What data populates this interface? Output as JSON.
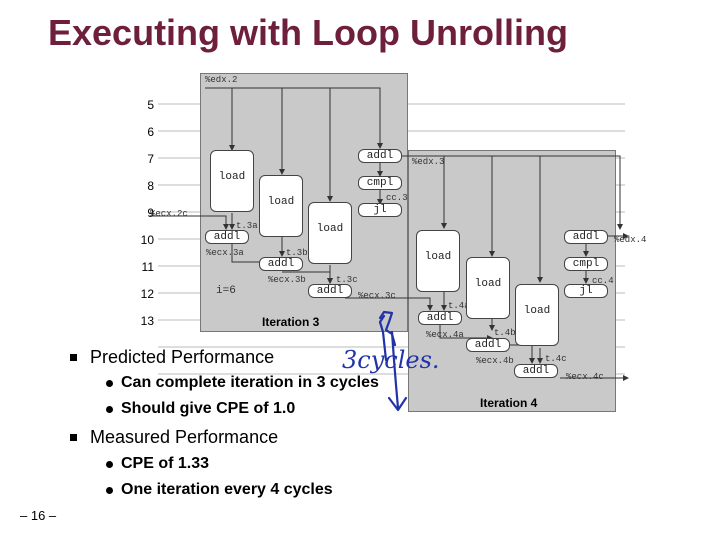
{
  "slide": {
    "title": "Executing with Loop Unrolling",
    "footer": "– 16 –"
  },
  "timeline": {
    "cycles": [
      "5",
      "6",
      "7",
      "8",
      "9",
      "10",
      "11",
      "12",
      "13"
    ]
  },
  "iteration3": {
    "label": "Iteration 3",
    "reg_top": "%edx.2",
    "reg_edx": "%edx.3",
    "reg_cc": "cc.3",
    "reg_ecx_in": "%ecx.2c",
    "reg_t3a": "t.3a",
    "reg_ecx3a": "%ecx.3a",
    "reg_t3b": "t.3b",
    "reg_ecx3b": "%ecx.3b",
    "reg_t3c": "t.3c",
    "reg_ecx3c": "%ecx.3c",
    "op_addl_top": "addl",
    "op_cmpl": "cmpl",
    "op_jl": "jl",
    "op_load1": "load",
    "op_load2": "load",
    "op_load3": "load",
    "op_addl1": "addl",
    "op_addl2": "addl",
    "op_addl3": "addl",
    "i_value": "i=6"
  },
  "iteration4": {
    "label": "Iteration 4",
    "reg_edx": "%edx.4",
    "reg_cc": "cc.4",
    "reg_t4a": "t.4a",
    "reg_ecx4a": "%ecx.4a",
    "reg_t4b": "t.4b",
    "reg_ecx4b": "%ecx.4b",
    "reg_t4c": "t.4c",
    "reg_ecx4c": "%ecx.4c",
    "op_addl_top": "addl",
    "op_cmpl": "cmpl",
    "op_jl": "jl",
    "op_load1": "load",
    "op_load2": "load",
    "op_load3": "load",
    "op_addl1": "addl",
    "op_addl2": "addl",
    "op_addl3": "addl"
  },
  "bullets": {
    "predicted": "Predicted Performance",
    "predicted_sub1": "Can complete iteration in 3 cycles",
    "predicted_sub2": "Should give CPE of 1.0",
    "measured": "Measured Performance",
    "measured_sub1": "CPE of 1.33",
    "measured_sub2": "One iteration every 4 cycles"
  },
  "annotation": {
    "handwritten": "3cycles."
  },
  "colors": {
    "title": "#6e1f3b",
    "panel": "#c9c9c9",
    "ink": "#2233aa"
  }
}
